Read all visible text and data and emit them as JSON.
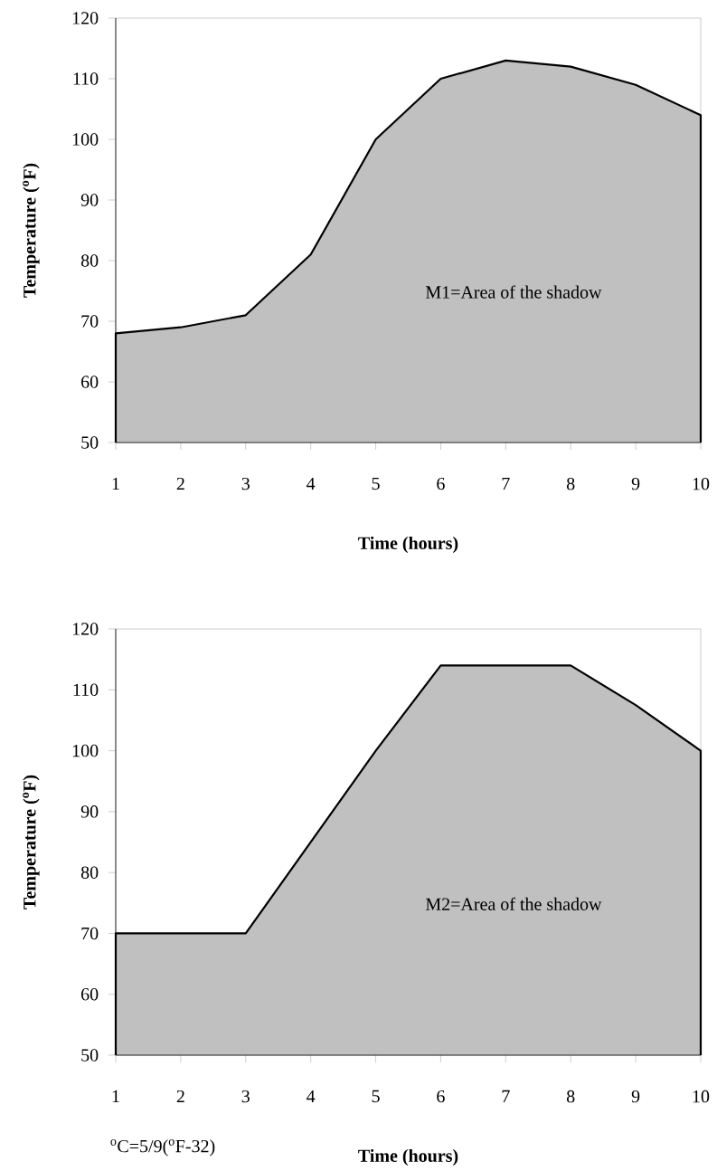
{
  "chart_data": [
    {
      "type": "area",
      "x": [
        1,
        2,
        3,
        4,
        5,
        6,
        7,
        8,
        9,
        10
      ],
      "values": [
        68,
        69,
        71,
        81,
        100,
        110,
        113,
        112,
        109,
        104
      ],
      "color": "#c0c0c0",
      "xlim": [
        1,
        10
      ],
      "ylim": [
        50,
        120
      ],
      "xticks": [
        1,
        2,
        3,
        4,
        5,
        6,
        7,
        8,
        9,
        10
      ],
      "yticks": [
        50,
        60,
        70,
        80,
        90,
        100,
        110,
        120
      ],
      "xlabel": "Time (hours)",
      "ylabel": "Temperature ($^{o}$F)",
      "annotations": [
        "M1=Area of the shadow"
      ]
    },
    {
      "type": "area",
      "x": [
        1,
        2,
        3,
        4,
        5,
        6,
        7,
        8,
        9,
        10
      ],
      "values": [
        70,
        70,
        70,
        85,
        100,
        114,
        114,
        114,
        107.5,
        100
      ],
      "color": "#c0c0c0",
      "xlim": [
        1,
        10
      ],
      "ylim": [
        50,
        120
      ],
      "xticks": [
        1,
        2,
        3,
        4,
        5,
        6,
        7,
        8,
        9,
        10
      ],
      "yticks": [
        50,
        60,
        70,
        80,
        90,
        100,
        110,
        120
      ],
      "xlabel": "Time (hours)",
      "ylabel": "Temperature ($^{o}$F)",
      "annotations": [
        "M2=Area of the shadow",
        "$^{o}$C=5/9($^{o}$F-32)"
      ]
    }
  ]
}
